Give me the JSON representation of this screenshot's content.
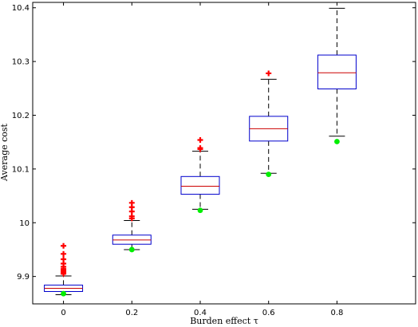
{
  "chart_data": {
    "type": "boxplot",
    "title": "",
    "xlabel": "Burden effect τ",
    "ylabel": "Average cost",
    "xlim": [
      -0.09,
      1.03
    ],
    "ylim": [
      9.849,
      10.41
    ],
    "xticks": [
      0,
      0.2,
      0.4,
      0.6,
      0.8
    ],
    "xtick_labels": [
      "0",
      "0.2",
      "0.4",
      "0.6",
      "0.8"
    ],
    "yticks": [
      9.9,
      10.0,
      10.1,
      10.2,
      10.3,
      10.4
    ],
    "ytick_labels": [
      "9.9",
      "10",
      "10.1",
      "10.2",
      "10.3",
      "10.4"
    ],
    "grid": false,
    "colors": {
      "box": "#0000cc",
      "median": "#cc0000",
      "whisker": "#000000",
      "outlier": "#ff0000",
      "marker": "#00ee00"
    },
    "boxes": [
      {
        "x": 0,
        "whisker_low": 9.866,
        "q1": 9.872,
        "median": 9.878,
        "q3": 9.884,
        "whisker_high": 9.901,
        "outliers": [
          9.905,
          9.908,
          9.911,
          9.914,
          9.918,
          9.924,
          9.932,
          9.942,
          9.957
        ],
        "marker": 9.868
      },
      {
        "x": 0.2,
        "whisker_low": 9.95,
        "q1": 9.96,
        "median": 9.968,
        "q3": 9.977,
        "whisker_high": 10.004,
        "outliers": [
          10.008,
          10.012,
          10.021,
          10.029,
          10.037
        ],
        "marker": 9.95
      },
      {
        "x": 0.4,
        "whisker_low": 10.025,
        "q1": 10.053,
        "median": 10.068,
        "q3": 10.086,
        "whisker_high": 10.133,
        "outliers": [
          10.137,
          10.139,
          10.154
        ],
        "marker": 10.023
      },
      {
        "x": 0.6,
        "whisker_low": 10.092,
        "q1": 10.152,
        "median": 10.175,
        "q3": 10.198,
        "whisker_high": 10.267,
        "outliers": [
          10.278
        ],
        "marker": 10.09
      },
      {
        "x": 0.8,
        "whisker_low": 10.161,
        "q1": 10.249,
        "median": 10.279,
        "q3": 10.312,
        "whisker_high": 10.399,
        "outliers": [],
        "marker": 10.151
      }
    ]
  }
}
